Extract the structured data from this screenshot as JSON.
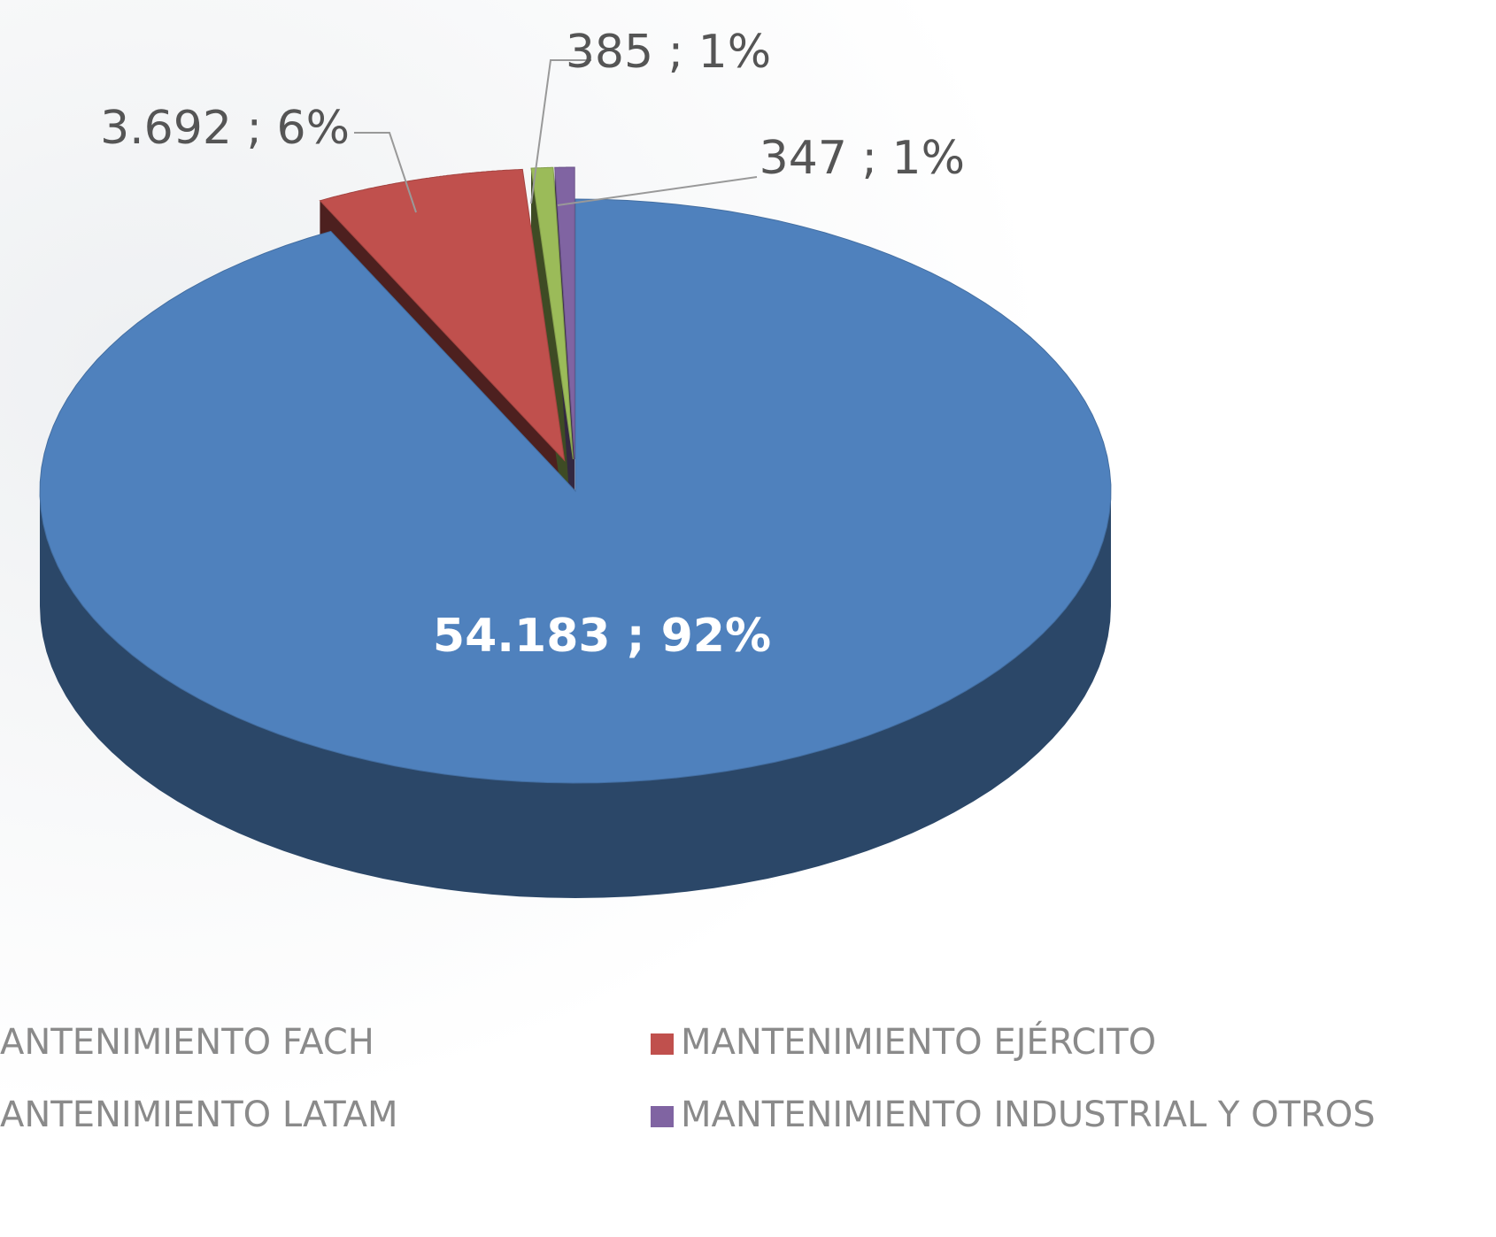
{
  "chart_data": {
    "type": "pie",
    "series": [
      {
        "name": "ANTENIMIENTO FACH",
        "color": "#4f81bd",
        "values": [
          54183
        ],
        "value_labels": [
          "54.183 ; 92%"
        ]
      },
      {
        "name": "MANTENIMIENTO EJÉRCITO",
        "color": "#c0504d",
        "values": [
          3692
        ],
        "value_labels": [
          "3.692 ; 6%"
        ]
      },
      {
        "name": "ANTENIMIENTO LATAM",
        "color": "#9bbb59",
        "values": [
          385
        ],
        "value_labels": [
          "385 ; 1%"
        ]
      },
      {
        "name": "MANTENIMIENTO INDUSTRIAL Y OTROS",
        "color": "#8064a2",
        "values": [
          347
        ],
        "value_labels": [
          "347 ; 1%"
        ]
      }
    ],
    "legend": "bottom"
  }
}
